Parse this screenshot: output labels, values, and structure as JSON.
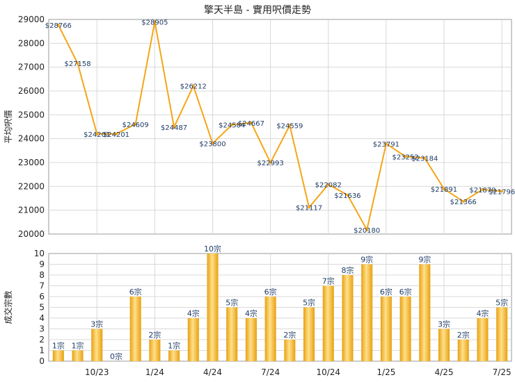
{
  "title": "擎天半島 - 實用呎價走勢",
  "colors": {
    "line": "#F5A516",
    "bar_light": "#FFE08A",
    "bar_dark": "#E8A010",
    "label": "#1F3B66",
    "grid": "#D8D8D8"
  },
  "chart_data": [
    {
      "type": "line",
      "ylabel": "平均呎價",
      "ylim": [
        20000,
        29000
      ],
      "yticks": [
        "20000",
        "21000",
        "22000",
        "23000",
        "24000",
        "25000",
        "26000",
        "27000",
        "28000",
        "29000"
      ],
      "values": [
        28766,
        27158,
        24201,
        24201,
        24609,
        28905,
        24487,
        26212,
        23800,
        24584,
        24667,
        22993,
        24559,
        21117,
        22082,
        21636,
        20180,
        23791,
        23252,
        23184,
        21891,
        21366,
        21870,
        21796
      ],
      "value_labels": [
        "$28766",
        "$27158",
        "$24201",
        "$24201",
        "$24609",
        "$28905",
        "$24487",
        "$26212",
        "$23800",
        "$24584",
        "$24667",
        "$22993",
        "$24559",
        "$21117",
        "$22082",
        "$21636",
        "$20180",
        "$23791",
        "$23252",
        "$23184",
        "$21891",
        "$21366",
        "$21870",
        "$21796"
      ]
    },
    {
      "type": "bar",
      "ylabel": "成交宗數",
      "ylim": [
        0,
        10
      ],
      "yticks": [
        "0",
        "1",
        "2",
        "3",
        "4",
        "5",
        "6",
        "7",
        "8",
        "9",
        "10"
      ],
      "values": [
        1,
        1,
        3,
        0,
        6,
        2,
        1,
        4,
        10,
        5,
        4,
        6,
        2,
        5,
        7,
        8,
        9,
        6,
        6,
        9,
        3,
        2,
        4,
        5
      ],
      "value_labels": [
        "1宗",
        "1宗",
        "3宗",
        "0宗",
        "6宗",
        "2宗",
        "1宗",
        "4宗",
        "10宗",
        "5宗",
        "4宗",
        "6宗",
        "2宗",
        "5宗",
        "7宗",
        "8宗",
        "9宗",
        "6宗",
        "6宗",
        "9宗",
        "3宗",
        "2宗",
        "4宗",
        "5宗"
      ],
      "x_tick_labels": [
        "10/23",
        "1/24",
        "4/24",
        "7/24",
        "10/24",
        "1/25",
        "4/25",
        "7/25"
      ]
    }
  ]
}
